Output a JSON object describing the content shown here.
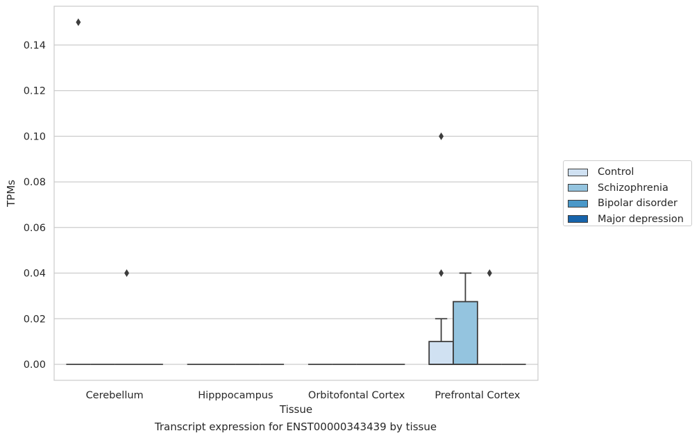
{
  "chart_data": {
    "type": "boxplot",
    "xlabel": "Tissue",
    "ylabel": "TPMs",
    "caption": "Transcript expression for ENST00000343439 by tissue",
    "ylim": [
      -0.007,
      0.157
    ],
    "yticks": [
      0.0,
      0.02,
      0.04,
      0.06,
      0.08,
      0.1,
      0.12,
      0.14
    ],
    "ytick_labels": [
      "0.00",
      "0.02",
      "0.04",
      "0.06",
      "0.08",
      "0.10",
      "0.12",
      "0.14"
    ],
    "grid": "horizontal",
    "legend_position": "right",
    "categories": [
      "Cerebellum",
      "Hipppocampus",
      "Orbitofontal Cortex",
      "Prefrontal Cortex"
    ],
    "series": [
      {
        "name": "Control",
        "color": "#d0e1f2",
        "boxes": [
          {
            "q1": 0,
            "median": 0,
            "q3": 0,
            "whislo": 0,
            "whishi": 0,
            "fliers": [
              0.15
            ]
          },
          {
            "q1": 0,
            "median": 0,
            "q3": 0,
            "whislo": 0,
            "whishi": 0,
            "fliers": []
          },
          {
            "q1": 0,
            "median": 0,
            "q3": 0,
            "whislo": 0,
            "whishi": 0,
            "fliers": []
          },
          {
            "q1": 0,
            "median": 0,
            "q3": 0.01,
            "whislo": 0,
            "whishi": 0.02,
            "fliers": [
              0.04,
              0.1
            ]
          }
        ]
      },
      {
        "name": "Schizophrenia",
        "color": "#94c4df",
        "boxes": [
          {
            "q1": 0,
            "median": 0,
            "q3": 0,
            "whislo": 0,
            "whishi": 0,
            "fliers": []
          },
          {
            "q1": 0,
            "median": 0,
            "q3": 0,
            "whislo": 0,
            "whishi": 0,
            "fliers": []
          },
          {
            "q1": 0,
            "median": 0,
            "q3": 0,
            "whislo": 0,
            "whishi": 0,
            "fliers": []
          },
          {
            "q1": 0,
            "median": 0,
            "q3": 0.0275,
            "whislo": 0,
            "whishi": 0.04,
            "fliers": []
          }
        ]
      },
      {
        "name": "Bipolar disorder",
        "color": "#4a98c9",
        "boxes": [
          {
            "q1": 0,
            "median": 0,
            "q3": 0,
            "whislo": 0,
            "whishi": 0,
            "fliers": [
              0.04
            ]
          },
          {
            "q1": 0,
            "median": 0,
            "q3": 0,
            "whislo": 0,
            "whishi": 0,
            "fliers": []
          },
          {
            "q1": 0,
            "median": 0,
            "q3": 0,
            "whislo": 0,
            "whishi": 0,
            "fliers": []
          },
          {
            "q1": 0,
            "median": 0,
            "q3": 0,
            "whislo": 0,
            "whishi": 0,
            "fliers": [
              0.04
            ]
          }
        ]
      },
      {
        "name": "Major depression",
        "color": "#1764ab",
        "boxes": [
          {
            "q1": 0,
            "median": 0,
            "q3": 0,
            "whislo": 0,
            "whishi": 0,
            "fliers": []
          },
          {
            "q1": 0,
            "median": 0,
            "q3": 0,
            "whislo": 0,
            "whishi": 0,
            "fliers": []
          },
          {
            "q1": 0,
            "median": 0,
            "q3": 0,
            "whislo": 0,
            "whishi": 0,
            "fliers": []
          },
          {
            "q1": 0,
            "median": 0,
            "q3": 0,
            "whislo": 0,
            "whishi": 0,
            "fliers": []
          }
        ]
      }
    ]
  }
}
